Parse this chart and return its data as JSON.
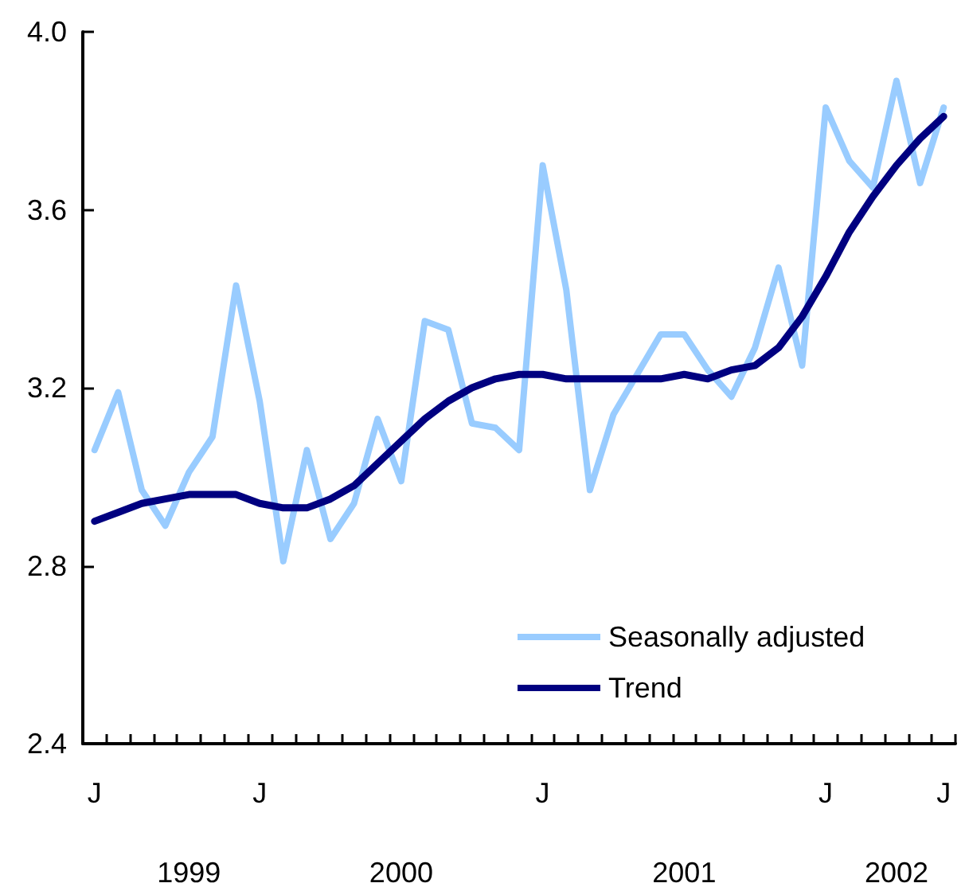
{
  "chart_data": {
    "type": "line",
    "categories": [
      "J",
      null,
      null,
      null,
      null,
      null,
      null,
      "J",
      null,
      null,
      null,
      null,
      null,
      null,
      null,
      null,
      null,
      null,
      null,
      "J",
      null,
      null,
      null,
      null,
      null,
      null,
      null,
      null,
      null,
      null,
      null,
      "J",
      null,
      null,
      null,
      null,
      "J"
    ],
    "series": [
      {
        "name": "Seasonally adjusted",
        "color": "#99ccff",
        "values": [
          3.06,
          3.19,
          2.97,
          2.89,
          3.01,
          3.09,
          3.43,
          3.17,
          2.81,
          3.06,
          2.86,
          2.94,
          3.13,
          2.99,
          3.35,
          3.33,
          3.12,
          3.11,
          3.06,
          3.7,
          3.42,
          2.97,
          3.14,
          3.23,
          3.32,
          3.32,
          3.24,
          3.18,
          3.29,
          3.47,
          3.25,
          3.83,
          3.71,
          3.65,
          3.89,
          3.66,
          3.83
        ]
      },
      {
        "name": "Trend",
        "color": "#000080",
        "values": [
          2.9,
          2.92,
          2.94,
          2.95,
          2.96,
          2.96,
          2.96,
          2.94,
          2.93,
          2.93,
          2.95,
          2.98,
          3.03,
          3.08,
          3.13,
          3.17,
          3.2,
          3.22,
          3.23,
          3.23,
          3.22,
          3.22,
          3.22,
          3.22,
          3.22,
          3.23,
          3.22,
          3.24,
          3.25,
          3.29,
          3.36,
          3.45,
          3.55,
          3.63,
          3.7,
          3.76,
          3.81
        ]
      }
    ],
    "annotations": [
      "1999",
      "2000",
      "2001",
      "2002"
    ],
    "ylim": [
      2.4,
      4.0
    ],
    "yticks": [
      2.4,
      2.8,
      3.2,
      3.6,
      {
        "value": 4,
        "label": "4.0"
      }
    ],
    "grid": false,
    "legend": "bottom right",
    "marker": "none",
    "line_style": "solid"
  }
}
